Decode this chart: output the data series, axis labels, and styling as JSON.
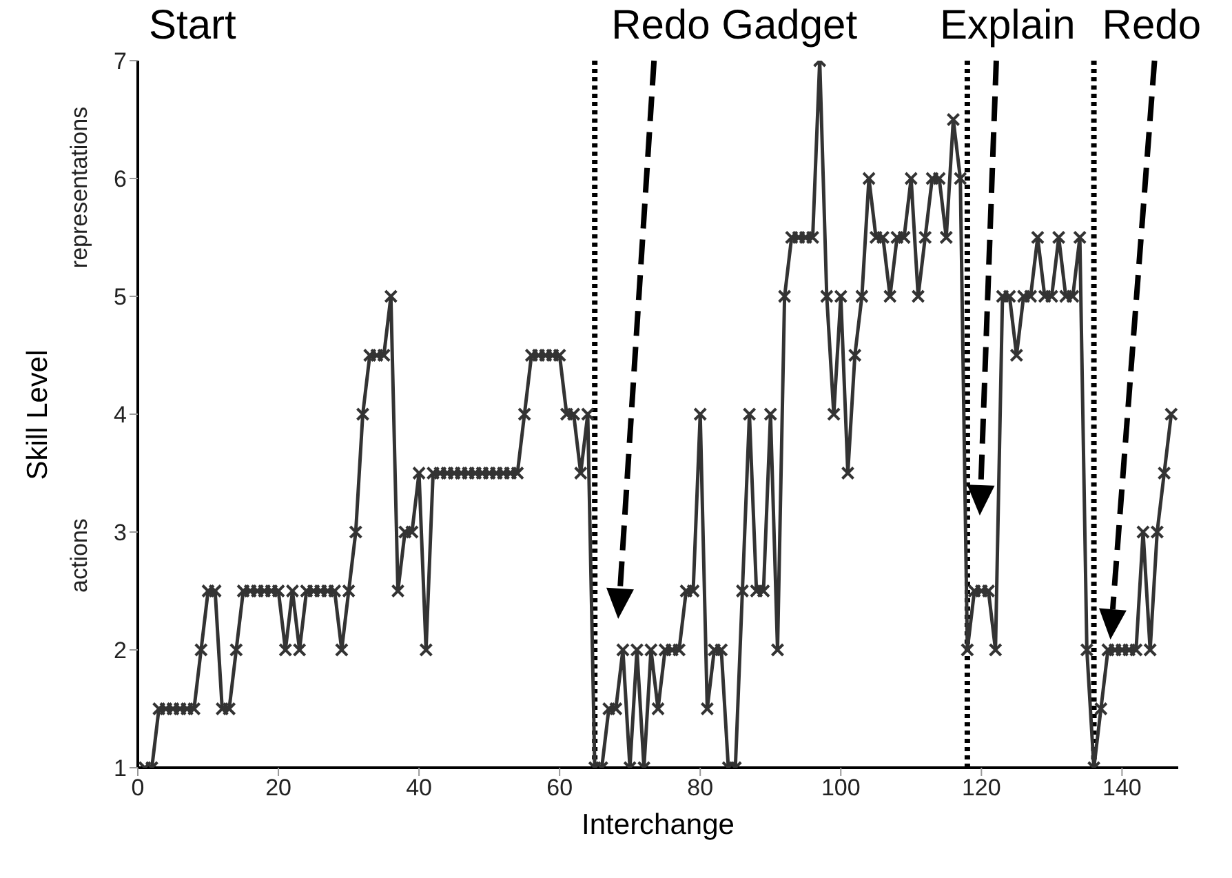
{
  "chart_data": {
    "type": "line",
    "xlabel": "Interchange",
    "ylabel": "Skill Level",
    "x": [
      1,
      2,
      3,
      4,
      5,
      6,
      7,
      8,
      9,
      10,
      11,
      12,
      13,
      14,
      15,
      16,
      17,
      18,
      19,
      20,
      21,
      22,
      23,
      24,
      25,
      26,
      27,
      28,
      29,
      30,
      31,
      32,
      33,
      34,
      35,
      36,
      37,
      38,
      39,
      40,
      41,
      42,
      43,
      44,
      45,
      46,
      47,
      48,
      49,
      50,
      51,
      52,
      53,
      54,
      55,
      56,
      57,
      58,
      59,
      60,
      61,
      62,
      63,
      64,
      65,
      66,
      67,
      68,
      69,
      70,
      71,
      72,
      73,
      74,
      75,
      76,
      77,
      78,
      79,
      80,
      81,
      82,
      83,
      84,
      85,
      86,
      87,
      88,
      89,
      90,
      91,
      92,
      93,
      94,
      95,
      96,
      97,
      98,
      99,
      100,
      101,
      102,
      103,
      104,
      105,
      106,
      107,
      108,
      109,
      110,
      111,
      112,
      113,
      114,
      115,
      116,
      117,
      118,
      119,
      120,
      121,
      122,
      123,
      124,
      125,
      126,
      127,
      128,
      129,
      130,
      131,
      132,
      133,
      134,
      135,
      136,
      137,
      138,
      139,
      140,
      141,
      142,
      143,
      144,
      145,
      146,
      147
    ],
    "series": [
      {
        "color": "#333333",
        "values": [
          1,
          1,
          1.5,
          1.5,
          1.5,
          1.5,
          1.5,
          1.5,
          2,
          2.5,
          2.5,
          1.5,
          1.5,
          2,
          2.5,
          2.5,
          2.5,
          2.5,
          2.5,
          2.5,
          2,
          2.5,
          2,
          2.5,
          2.5,
          2.5,
          2.5,
          2.5,
          2,
          2.5,
          3,
          4,
          4.5,
          4.5,
          4.5,
          5,
          2.5,
          3,
          3,
          3.5,
          2,
          3.5,
          3.5,
          3.5,
          3.5,
          3.5,
          3.5,
          3.5,
          3.5,
          3.5,
          3.5,
          3.5,
          3.5,
          3.5,
          4,
          4.5,
          4.5,
          4.5,
          4.5,
          4.5,
          4,
          4,
          3.5,
          4,
          1,
          1,
          1.5,
          1.5,
          2,
          1,
          2,
          1,
          2,
          1.5,
          2,
          2,
          2,
          2.5,
          2.5,
          4,
          1.5,
          2,
          2,
          1,
          1,
          2.5,
          4,
          2.5,
          2.5,
          4,
          2,
          5,
          5.5,
          5.5,
          5.5,
          5.5,
          7,
          5,
          4,
          5,
          3.5,
          4.5,
          5,
          6,
          5.5,
          5.5,
          5,
          5.5,
          5.5,
          6,
          5,
          5.5,
          6,
          6,
          5.5,
          6.5,
          6,
          2,
          2.5,
          2.5,
          2.5,
          2,
          5,
          5,
          4.5,
          5,
          5,
          5.5,
          5,
          5,
          5.5,
          5,
          5,
          5.5,
          2,
          1,
          1.5,
          2,
          2,
          2,
          2,
          2,
          3,
          2,
          3,
          3.5,
          4
        ]
      }
    ],
    "xlim": [
      0,
      148
    ],
    "xticks": [
      0,
      20,
      40,
      60,
      80,
      100,
      120,
      140
    ],
    "ylim": [
      1,
      7
    ],
    "yticks": [
      1,
      2,
      3,
      4,
      5,
      6,
      7
    ],
    "marker": "cross",
    "line_style": "solid",
    "ref_lines": [
      {
        "axis": "x",
        "value": 65,
        "label": "Redo Gadget",
        "line_style": "dotted",
        "color": "#000000"
      },
      {
        "axis": "x",
        "value": 118,
        "label": "Explain",
        "line_style": "dotted",
        "color": "#000000"
      },
      {
        "axis": "x",
        "value": 136,
        "label": "Redo",
        "line_style": "dotted",
        "color": "#000000"
      }
    ],
    "annotations": [
      "Start",
      "actions",
      "representations"
    ]
  }
}
